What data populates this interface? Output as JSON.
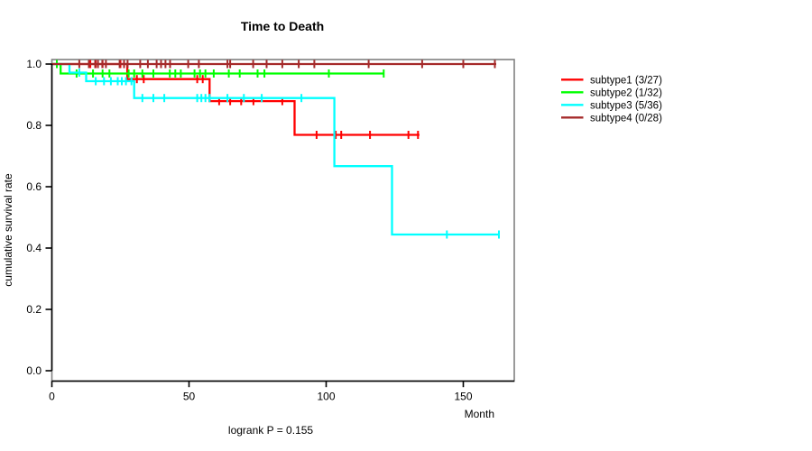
{
  "title": "Time to Death",
  "colors": {
    "background": "#ffffff",
    "box_border": "#808080",
    "axis_line": "#000000",
    "text": "#000000"
  },
  "chart_data": {
    "type": "line",
    "subtype": "kaplan-meier-step",
    "title": "Time to Death",
    "xlabel": "Month",
    "ylabel": "cumulative survival rate",
    "annotation": "logrank P = 0.155",
    "xlim": [
      0,
      168
    ],
    "ylim": [
      0,
      1.04
    ],
    "grid": false,
    "legend_position": "right-outside",
    "x_ticks": [
      0,
      50,
      100,
      150
    ],
    "y_ticks": [
      1.0,
      0.8,
      0.6,
      0.4,
      0.2,
      0.0
    ],
    "y_tick_labels": [
      "1.0",
      "0.8",
      "0.6",
      "0.4",
      "0.2",
      "0.0"
    ],
    "series": [
      {
        "name": "subtype1",
        "legend_label": "subtype1 (3/27)",
        "events": 3,
        "n": 27,
        "color": "#ff0000",
        "steps": [
          [
            0,
            1.0
          ],
          [
            27.5,
            0.951
          ],
          [
            57.5,
            0.879
          ],
          [
            88.5,
            0.769
          ]
        ],
        "end_month": 134,
        "censors": [
          [
            14,
            1.0
          ],
          [
            16,
            1.0
          ],
          [
            18.5,
            1.0
          ],
          [
            25,
            1.0
          ],
          [
            31,
            0.951
          ],
          [
            33.5,
            0.951
          ],
          [
            53,
            0.951
          ],
          [
            55,
            0.951
          ],
          [
            61,
            0.879
          ],
          [
            65,
            0.879
          ],
          [
            69,
            0.879
          ],
          [
            73.5,
            0.879
          ],
          [
            84,
            0.879
          ],
          [
            96.5,
            0.769
          ],
          [
            103.5,
            0.769
          ],
          [
            105.5,
            0.769
          ],
          [
            116,
            0.769
          ],
          [
            130,
            0.769
          ],
          [
            133.5,
            0.769
          ]
        ]
      },
      {
        "name": "subtype2",
        "legend_label": "subtype2 (1/32)",
        "events": 1,
        "n": 32,
        "color": "#00ff00",
        "steps": [
          [
            0,
            1.0
          ],
          [
            3.2,
            0.969
          ]
        ],
        "end_month": 121,
        "censors": [
          [
            1.8,
            1.0
          ],
          [
            9,
            0.969
          ],
          [
            15,
            0.969
          ],
          [
            18.5,
            0.969
          ],
          [
            21,
            0.969
          ],
          [
            28,
            0.969
          ],
          [
            30,
            0.969
          ],
          [
            33,
            0.969
          ],
          [
            37,
            0.969
          ],
          [
            43,
            0.969
          ],
          [
            45,
            0.969
          ],
          [
            47,
            0.969
          ],
          [
            52,
            0.969
          ],
          [
            54,
            0.969
          ],
          [
            56,
            0.969
          ],
          [
            59,
            0.969
          ],
          [
            64.5,
            0.969
          ],
          [
            68.5,
            0.969
          ],
          [
            75,
            0.969
          ],
          [
            77.5,
            0.969
          ],
          [
            101,
            0.969
          ],
          [
            121,
            0.969
          ]
        ]
      },
      {
        "name": "subtype3",
        "legend_label": "subtype3 (5/36)",
        "events": 5,
        "n": 36,
        "color": "#00ffff",
        "steps": [
          [
            0,
            1.0
          ],
          [
            6.4,
            0.972
          ],
          [
            12.5,
            0.944
          ],
          [
            30,
            0.889
          ],
          [
            103,
            0.667
          ],
          [
            124,
            0.444
          ]
        ],
        "end_month": 163,
        "censors": [
          [
            10,
            0.972
          ],
          [
            16,
            0.944
          ],
          [
            19,
            0.944
          ],
          [
            21.5,
            0.944
          ],
          [
            24,
            0.944
          ],
          [
            25.5,
            0.944
          ],
          [
            27,
            0.944
          ],
          [
            29,
            0.944
          ],
          [
            33,
            0.889
          ],
          [
            37,
            0.889
          ],
          [
            41,
            0.889
          ],
          [
            53,
            0.889
          ],
          [
            54.5,
            0.889
          ],
          [
            56,
            0.889
          ],
          [
            57.5,
            0.889
          ],
          [
            64,
            0.889
          ],
          [
            70,
            0.889
          ],
          [
            76.5,
            0.889
          ],
          [
            91,
            0.889
          ],
          [
            144,
            0.444
          ],
          [
            163,
            0.444
          ]
        ]
      },
      {
        "name": "subtype4",
        "legend_label": "subtype4 (0/28)",
        "events": 0,
        "n": 28,
        "color": "#a52a2a",
        "steps": [
          [
            0,
            1.0
          ]
        ],
        "end_month": 162,
        "censors": [
          [
            10,
            1.0
          ],
          [
            13.5,
            1.0
          ],
          [
            15.8,
            1.0
          ],
          [
            16.8,
            1.0
          ],
          [
            18.4,
            1.0
          ],
          [
            19.7,
            1.0
          ],
          [
            24.7,
            1.0
          ],
          [
            26.3,
            1.0
          ],
          [
            27.6,
            1.0
          ],
          [
            32.2,
            1.0
          ],
          [
            35,
            1.0
          ],
          [
            38.2,
            1.0
          ],
          [
            39.8,
            1.0
          ],
          [
            41.4,
            1.0
          ],
          [
            43.1,
            1.0
          ],
          [
            49.7,
            1.0
          ],
          [
            53.6,
            1.0
          ],
          [
            64,
            1.0
          ],
          [
            65,
            1.0
          ],
          [
            73.4,
            1.0
          ],
          [
            78.3,
            1.0
          ],
          [
            84,
            1.0
          ],
          [
            90,
            1.0
          ],
          [
            95.7,
            1.0
          ],
          [
            115.5,
            1.0
          ],
          [
            135,
            1.0
          ],
          [
            150,
            1.0
          ],
          [
            161.5,
            1.0
          ]
        ]
      }
    ]
  }
}
